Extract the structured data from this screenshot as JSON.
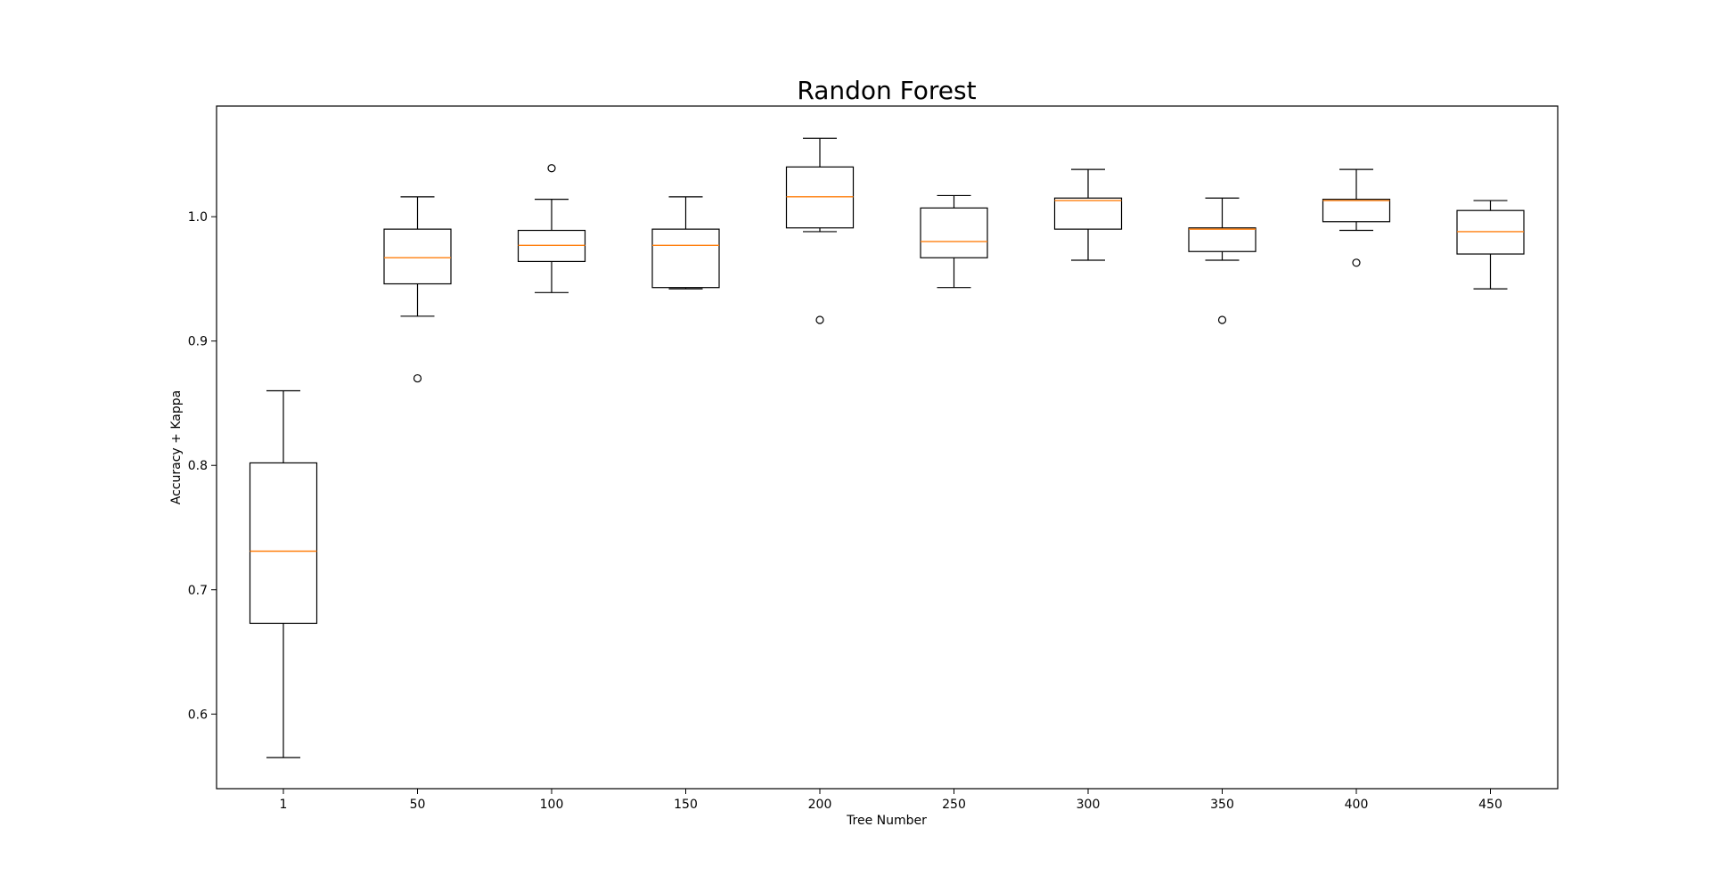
{
  "chart_data": {
    "type": "box",
    "title": "Randon Forest",
    "xlabel": "Tree Number",
    "ylabel": "Accuracy + Kappa",
    "ylim": [
      0.54,
      1.089
    ],
    "yticks": [
      0.6,
      0.7,
      0.8,
      0.9,
      1.0
    ],
    "ytick_labels": [
      "0.6",
      "0.7",
      "0.8",
      "0.9",
      "1.0"
    ],
    "grid": false,
    "median_color": "#ff7f0e",
    "box_color": "#000000",
    "categories": [
      "1",
      "50",
      "100",
      "150",
      "200",
      "250",
      "300",
      "350",
      "400",
      "450"
    ],
    "boxes": [
      {
        "whisker_low": 0.565,
        "q1": 0.673,
        "median": 0.731,
        "q3": 0.802,
        "whisker_high": 0.86,
        "outliers": []
      },
      {
        "whisker_low": 0.92,
        "q1": 0.946,
        "median": 0.967,
        "q3": 0.99,
        "whisker_high": 1.016,
        "outliers": [
          0.87
        ]
      },
      {
        "whisker_low": 0.939,
        "q1": 0.964,
        "median": 0.977,
        "q3": 0.989,
        "whisker_high": 1.014,
        "outliers": [
          1.039
        ]
      },
      {
        "whisker_low": 0.942,
        "q1": 0.943,
        "median": 0.977,
        "q3": 0.99,
        "whisker_high": 1.016,
        "outliers": []
      },
      {
        "whisker_low": 0.988,
        "q1": 0.991,
        "median": 1.016,
        "q3": 1.04,
        "whisker_high": 1.063,
        "outliers": [
          0.917
        ]
      },
      {
        "whisker_low": 0.943,
        "q1": 0.967,
        "median": 0.98,
        "q3": 1.007,
        "whisker_high": 1.017,
        "outliers": []
      },
      {
        "whisker_low": 0.965,
        "q1": 0.99,
        "median": 1.013,
        "q3": 1.015,
        "whisker_high": 1.038,
        "outliers": []
      },
      {
        "whisker_low": 0.965,
        "q1": 0.972,
        "median": 0.99,
        "q3": 0.991,
        "whisker_high": 1.015,
        "outliers": [
          0.917
        ]
      },
      {
        "whisker_low": 0.989,
        "q1": 0.996,
        "median": 1.013,
        "q3": 1.014,
        "whisker_high": 1.038,
        "outliers": [
          0.963
        ]
      },
      {
        "whisker_low": 0.942,
        "q1": 0.97,
        "median": 0.988,
        "q3": 1.005,
        "whisker_high": 1.013,
        "outliers": []
      }
    ]
  }
}
